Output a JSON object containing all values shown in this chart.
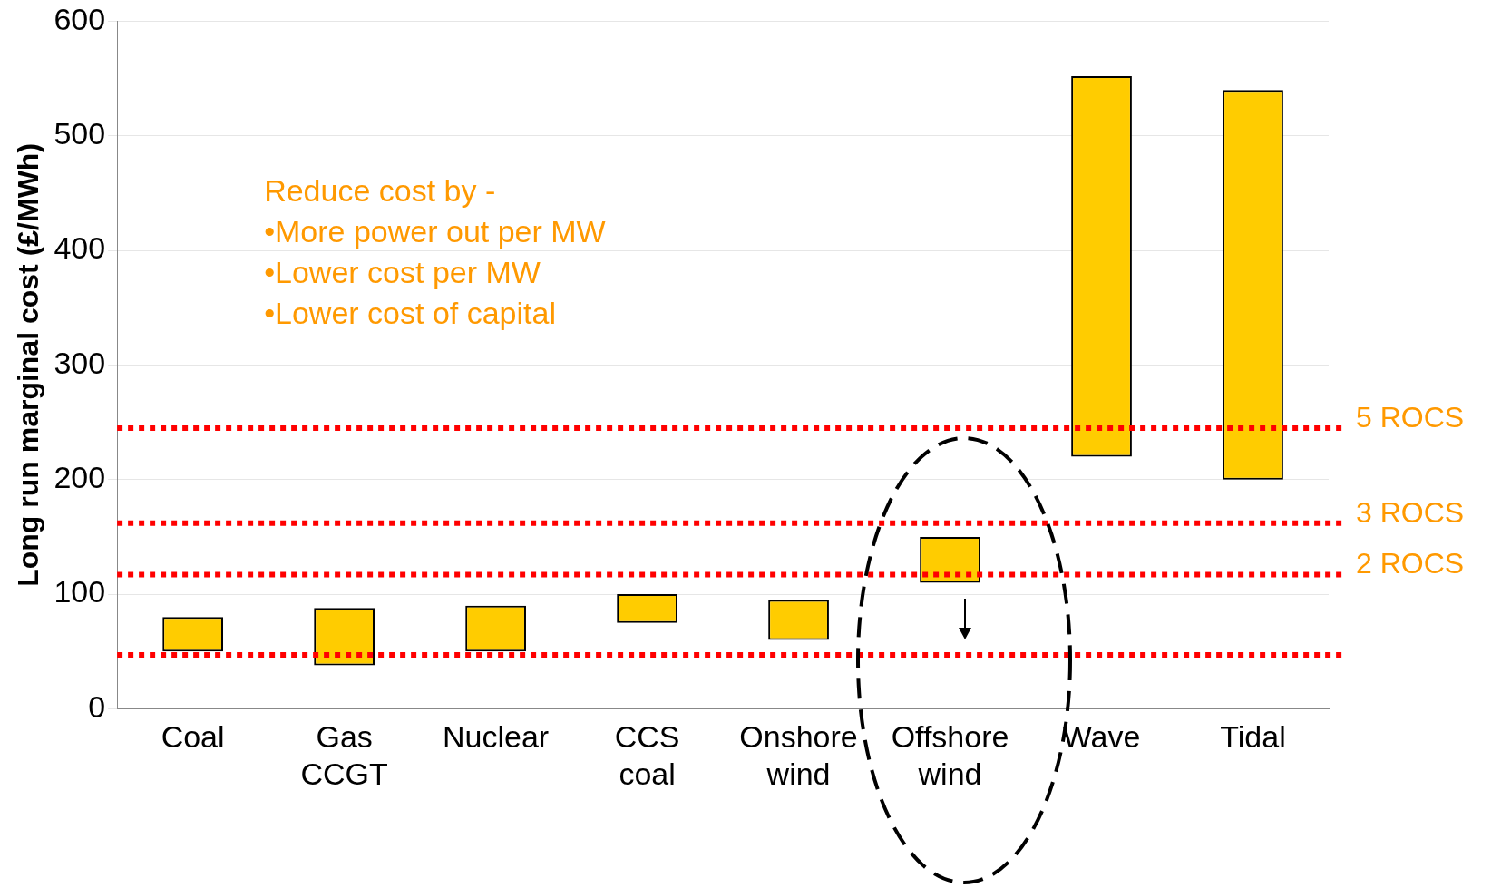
{
  "chart_data": {
    "type": "bar",
    "ylabel": "Long run marginal cost (£/MWh)",
    "categories": [
      "Coal",
      "Gas CCGT",
      "Nuclear",
      "CCS coal",
      "Onshore wind",
      "Offshore wind",
      "Wave",
      "Tidal"
    ],
    "base": [
      50,
      38,
      50,
      75,
      60,
      110,
      220,
      200
    ],
    "values": [
      30,
      50,
      40,
      25,
      35,
      40,
      332,
      340
    ],
    "color": "#ffcc00",
    "ylim": [
      0,
      600
    ],
    "yticks": [
      0,
      100,
      200,
      300,
      400,
      500,
      600
    ],
    "grid": "y",
    "legend": false,
    "ref_lines": [
      {
        "axis": "y",
        "value": 245,
        "label": "5 ROCS",
        "color": "#ff0000",
        "line_style": "dotted"
      },
      {
        "axis": "y",
        "value": 162,
        "label": "3 ROCS",
        "color": "#ff0000",
        "line_style": "dotted"
      },
      {
        "axis": "y",
        "value": 117,
        "label": "2 ROCS",
        "color": "#ff0000",
        "line_style": "dotted"
      },
      {
        "axis": "y",
        "value": 47,
        "label": null,
        "color": "#ff0000",
        "line_style": "dotted"
      }
    ],
    "annotations": [
      "Reduce cost by -",
      "•More power out per MW",
      "•Lower cost per MW",
      "•Lower cost of capital"
    ]
  }
}
